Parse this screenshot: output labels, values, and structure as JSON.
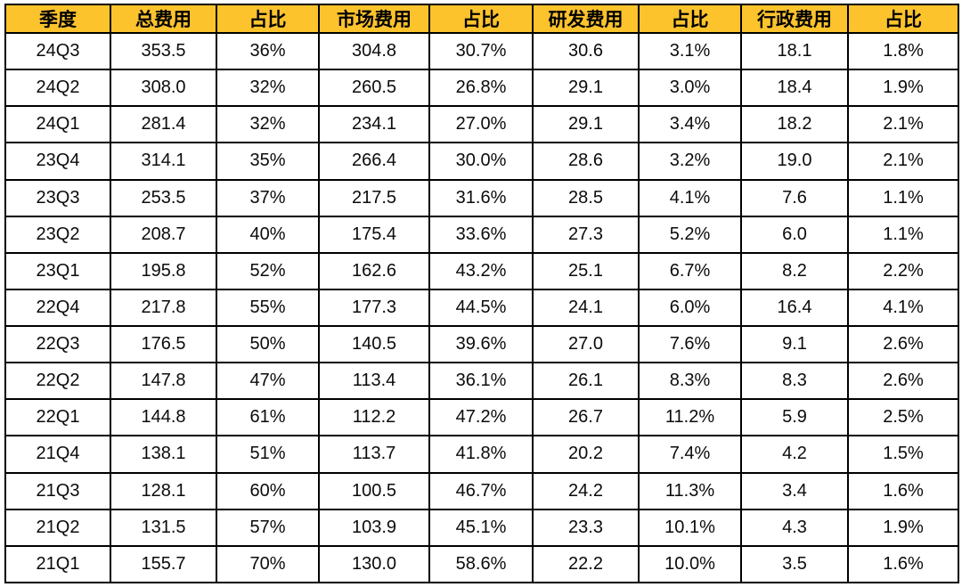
{
  "colors": {
    "header_bg": "#FCC32D",
    "grid_border": "#000000",
    "cell_bg": "#FFFFFF",
    "text": "#000000"
  },
  "chart_data": {
    "type": "table",
    "columns": [
      "季度",
      "总费用",
      "占比",
      "市场费用",
      "占比",
      "研发费用",
      "占比",
      "行政费用",
      "占比"
    ],
    "rows": [
      [
        "24Q3",
        "353.5",
        "36%",
        "304.8",
        "30.7%",
        "30.6",
        "3.1%",
        "18.1",
        "1.8%"
      ],
      [
        "24Q2",
        "308.0",
        "32%",
        "260.5",
        "26.8%",
        "29.1",
        "3.0%",
        "18.4",
        "1.9%"
      ],
      [
        "24Q1",
        "281.4",
        "32%",
        "234.1",
        "27.0%",
        "29.1",
        "3.4%",
        "18.2",
        "2.1%"
      ],
      [
        "23Q4",
        "314.1",
        "35%",
        "266.4",
        "30.0%",
        "28.6",
        "3.2%",
        "19.0",
        "2.1%"
      ],
      [
        "23Q3",
        "253.5",
        "37%",
        "217.5",
        "31.6%",
        "28.5",
        "4.1%",
        "7.6",
        "1.1%"
      ],
      [
        "23Q2",
        "208.7",
        "40%",
        "175.4",
        "33.6%",
        "27.3",
        "5.2%",
        "6.0",
        "1.1%"
      ],
      [
        "23Q1",
        "195.8",
        "52%",
        "162.6",
        "43.2%",
        "25.1",
        "6.7%",
        "8.2",
        "2.2%"
      ],
      [
        "22Q4",
        "217.8",
        "55%",
        "177.3",
        "44.5%",
        "24.1",
        "6.0%",
        "16.4",
        "4.1%"
      ],
      [
        "22Q3",
        "176.5",
        "50%",
        "140.5",
        "39.6%",
        "27.0",
        "7.6%",
        "9.1",
        "2.6%"
      ],
      [
        "22Q2",
        "147.8",
        "47%",
        "113.4",
        "36.1%",
        "26.1",
        "8.3%",
        "8.3",
        "2.6%"
      ],
      [
        "22Q1",
        "144.8",
        "61%",
        "112.2",
        "47.2%",
        "26.7",
        "11.2%",
        "5.9",
        "2.5%"
      ],
      [
        "21Q4",
        "138.1",
        "51%",
        "113.7",
        "41.8%",
        "20.2",
        "7.4%",
        "4.2",
        "1.5%"
      ],
      [
        "21Q3",
        "128.1",
        "60%",
        "100.5",
        "46.7%",
        "24.2",
        "11.3%",
        "3.4",
        "1.6%"
      ],
      [
        "21Q2",
        "131.5",
        "57%",
        "103.9",
        "45.1%",
        "23.3",
        "10.1%",
        "4.3",
        "1.9%"
      ],
      [
        "21Q1",
        "155.7",
        "70%",
        "130.0",
        "58.6%",
        "22.2",
        "10.0%",
        "3.5",
        "1.6%"
      ]
    ]
  }
}
